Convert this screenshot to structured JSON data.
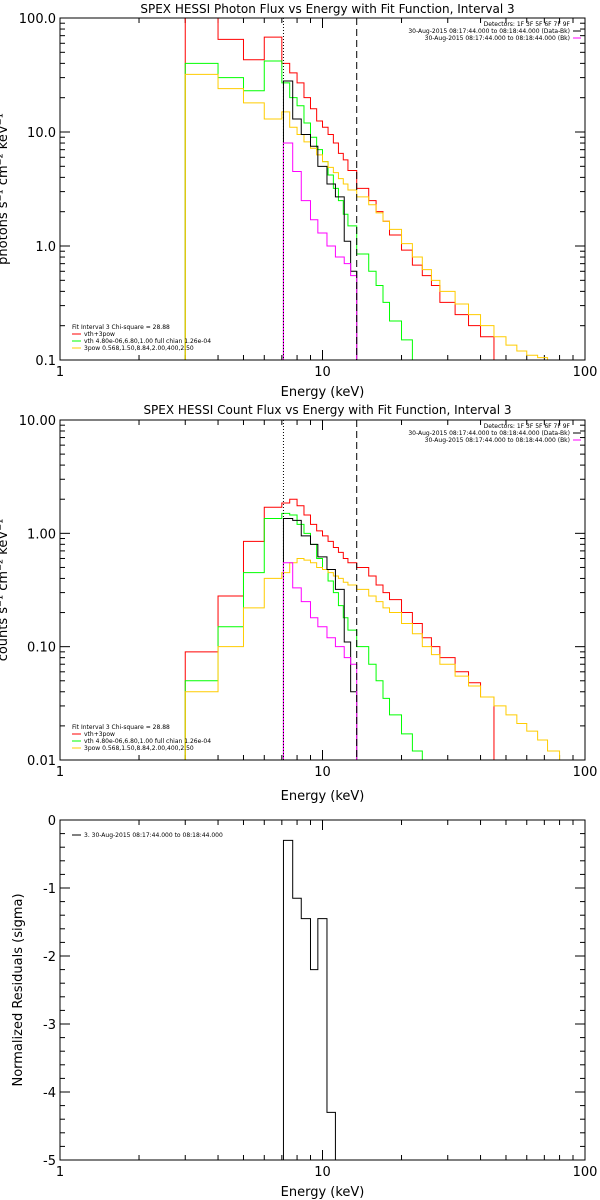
{
  "chart_data": [
    {
      "type": "line",
      "title": "SPEX HESSI Photon Flux vs Energy with Fit Function, Interval 3",
      "xlabel": "Energy (keV)",
      "ylabel": "photons s⁻¹ cm⁻² keV⁻¹",
      "x_scale": "log",
      "y_scale": "log",
      "xlim": [
        1,
        100
      ],
      "ylim": [
        0.1,
        100
      ],
      "xticks": [
        1,
        10,
        100
      ],
      "xtick_labels": [
        "1",
        "10",
        "100"
      ],
      "yticks": [
        0.1,
        1,
        10,
        100
      ],
      "ytick_labels": [
        "0.1",
        "1.0",
        "10.0",
        "100.0"
      ],
      "grid": false,
      "legend_right": [
        {
          "text": "Detectors: 1F 3F 5F 6F 7F 9F",
          "color": ""
        },
        {
          "text": "30-Aug-2015 08:17:44.000 to 08:18:44.000 (Data-Bk)",
          "color": "#000000"
        },
        {
          "text": "30-Aug-2015 08:17:44.000 to 08:18:44.000 (Bk)",
          "color": "#ff00ff"
        }
      ],
      "legend_left": [
        {
          "text": "Fit Interval 3   Chi-square = 28.88",
          "color": ""
        },
        {
          "text": "vth+3pow",
          "color": "#ff0000"
        },
        {
          "text": "vth 4.80e-06,6.80,1.00   full chian 1.26e-04",
          "color": "#00ff00"
        },
        {
          "text": "3pow 0.568,1.50,8.84,2.00,400,2.50",
          "color": "#ffcc00"
        }
      ],
      "vlines": [
        {
          "x": 7.1,
          "style": "dotted"
        },
        {
          "x": 13.5,
          "style": "dashed"
        }
      ],
      "series": [
        {
          "name": "vth+3pow",
          "color": "#ff0000",
          "edges": [
            3,
            4,
            5,
            6,
            7,
            7.5,
            8,
            8.5,
            9,
            9.5,
            10,
            10.5,
            11,
            11.5,
            12,
            12.5,
            13.5,
            15,
            16,
            17,
            18,
            20,
            22,
            24,
            26,
            28,
            32,
            36,
            40,
            45
          ],
          "values": [
            100,
            65,
            43,
            68,
            40,
            33,
            27,
            20,
            16,
            12.5,
            11,
            9.5,
            8,
            6.5,
            5.7,
            4.6,
            3.2,
            2.5,
            2,
            1.65,
            1.25,
            0.92,
            0.68,
            0.55,
            0.45,
            0.32,
            0.25,
            0.2,
            0.16
          ]
        },
        {
          "name": "vth",
          "color": "#00ff00",
          "edges": [
            3,
            4,
            5,
            6,
            7,
            7.5,
            8,
            8.5,
            9,
            9.5,
            10,
            10.5,
            11,
            11.5,
            12,
            12.5,
            13.5,
            15,
            16,
            17,
            18,
            20,
            22,
            24,
            26,
            28
          ],
          "values": [
            40,
            30,
            23,
            42,
            27,
            20,
            17,
            12,
            9,
            7,
            5.5,
            4.2,
            3.2,
            2.5,
            1.9,
            1.5,
            0.85,
            0.6,
            0.45,
            0.32,
            0.22,
            0.15,
            0.1,
            0.1,
            0.1
          ]
        },
        {
          "name": "3pow",
          "color": "#ffcc00",
          "edges": [
            3,
            4,
            5,
            6,
            7,
            7.5,
            8,
            8.5,
            9,
            9.5,
            10,
            10.5,
            11,
            11.5,
            12,
            12.5,
            13.5,
            15,
            16,
            17,
            18,
            20,
            22,
            24,
            26,
            28,
            32,
            36,
            40,
            45,
            50,
            55,
            60,
            66,
            72,
            80
          ],
          "values": [
            32,
            24,
            18,
            13,
            15,
            11,
            9.5,
            8.2,
            7.2,
            6.3,
            5.5,
            4.9,
            4.4,
            3.9,
            3.5,
            3.1,
            2.7,
            2.3,
            1.95,
            1.65,
            1.4,
            1.05,
            0.8,
            0.62,
            0.5,
            0.4,
            0.31,
            0.25,
            0.2,
            0.16,
            0.135,
            0.12,
            0.11,
            0.105,
            0.1
          ]
        },
        {
          "name": "Data-Bk",
          "color": "#000000",
          "edges": [
            7.1,
            7.7,
            8.3,
            9,
            9.6,
            10.4,
            11.2,
            12.1,
            12.8,
            13.5
          ],
          "values": [
            28,
            13,
            9.5,
            7.5,
            5,
            3.5,
            2.7,
            1.1,
            0.6
          ]
        },
        {
          "name": "Bk",
          "color": "#ff00ff",
          "edges": [
            7.1,
            7.7,
            8.3,
            9,
            9.6,
            10.4,
            11.2,
            12.1,
            12.8,
            13.5
          ],
          "values": [
            8,
            4.5,
            2.5,
            1.7,
            1.3,
            1,
            0.8,
            0.7,
            0.55
          ]
        }
      ]
    },
    {
      "type": "line",
      "title": "SPEX HESSI Count Flux vs Energy with Fit Function, Interval 3",
      "xlabel": "Energy (keV)",
      "ylabel": "counts s⁻¹ cm⁻² keV⁻¹",
      "x_scale": "log",
      "y_scale": "log",
      "xlim": [
        1,
        100
      ],
      "ylim": [
        0.01,
        10
      ],
      "xticks": [
        1,
        10,
        100
      ],
      "xtick_labels": [
        "1",
        "10",
        "100"
      ],
      "yticks": [
        0.01,
        0.1,
        1,
        10
      ],
      "ytick_labels": [
        "0.01",
        "0.10",
        "1.00",
        "10.00"
      ],
      "grid": false,
      "legend_right": [
        {
          "text": "Detectors: 1F 3F 5F 6F 7F 9F",
          "color": ""
        },
        {
          "text": "30-Aug-2015 08:17:44.000 to 08:18:44.000 (Data-Bk)",
          "color": "#000000"
        },
        {
          "text": "30-Aug-2015 08:17:44.000 to 08:18:44.000 (Bk)",
          "color": "#ff00ff"
        }
      ],
      "legend_left": [
        {
          "text": "Fit Interval 3   Chi-square = 28.88",
          "color": ""
        },
        {
          "text": "vth+3pow",
          "color": "#ff0000"
        },
        {
          "text": "vth 4.80e-06,6.80,1.00   full chian 1.26e-04",
          "color": "#00ff00"
        },
        {
          "text": "3pow 0.568,1.50,8.84,2.00,400,2.50",
          "color": "#ffcc00"
        }
      ],
      "vlines": [
        {
          "x": 7.1,
          "style": "dotted"
        },
        {
          "x": 13.5,
          "style": "dashed"
        }
      ],
      "series": [
        {
          "name": "vth+3pow",
          "color": "#ff0000",
          "edges": [
            3,
            4,
            5,
            6,
            7,
            7.5,
            8,
            8.5,
            9,
            9.5,
            10,
            10.5,
            11,
            11.5,
            12,
            12.5,
            13.5,
            15,
            16,
            17,
            18,
            20,
            22,
            24,
            26,
            28,
            32,
            36,
            40,
            45
          ],
          "values": [
            0.09,
            0.28,
            0.85,
            1.7,
            1.85,
            2,
            1.75,
            1.45,
            1.2,
            1.05,
            0.95,
            0.85,
            0.75,
            0.68,
            0.6,
            0.55,
            0.5,
            0.42,
            0.35,
            0.3,
            0.26,
            0.2,
            0.16,
            0.12,
            0.1,
            0.08,
            0.06,
            0.048,
            0.036
          ]
        },
        {
          "name": "vth",
          "color": "#00ff00",
          "edges": [
            3,
            4,
            5,
            6,
            7,
            7.5,
            8,
            8.5,
            9,
            9.5,
            10,
            10.5,
            11,
            11.5,
            12,
            12.5,
            13.5,
            15,
            16,
            17,
            18,
            20,
            22,
            24,
            26,
            28
          ],
          "values": [
            0.05,
            0.15,
            0.45,
            1.35,
            1.5,
            1.45,
            1.2,
            1,
            0.8,
            0.6,
            0.48,
            0.38,
            0.3,
            0.23,
            0.18,
            0.14,
            0.1,
            0.07,
            0.05,
            0.035,
            0.025,
            0.017,
            0.012,
            0.01,
            0.01
          ]
        },
        {
          "name": "3pow",
          "color": "#ffcc00",
          "edges": [
            3,
            4,
            5,
            6,
            7,
            7.5,
            8,
            8.5,
            9,
            9.5,
            10,
            10.5,
            11,
            11.5,
            12,
            12.5,
            13.5,
            15,
            16,
            17,
            18,
            20,
            22,
            24,
            26,
            28,
            32,
            36,
            40,
            45,
            50,
            55,
            60,
            66,
            72,
            80,
            90
          ],
          "values": [
            0.04,
            0.1,
            0.22,
            0.4,
            0.45,
            0.55,
            0.6,
            0.58,
            0.55,
            0.5,
            0.48,
            0.45,
            0.42,
            0.4,
            0.37,
            0.35,
            0.32,
            0.28,
            0.25,
            0.22,
            0.2,
            0.16,
            0.13,
            0.1,
            0.085,
            0.07,
            0.055,
            0.045,
            0.036,
            0.03,
            0.025,
            0.021,
            0.018,
            0.015,
            0.012,
            0.01
          ]
        },
        {
          "name": "Data-Bk",
          "color": "#000000",
          "edges": [
            7.1,
            7.7,
            8.3,
            9,
            9.6,
            10.4,
            11.2,
            12.1,
            12.8,
            13.5
          ],
          "values": [
            1.35,
            1.3,
            0.95,
            0.8,
            0.62,
            0.48,
            0.32,
            0.11,
            0.04
          ]
        },
        {
          "name": "Bk",
          "color": "#ff00ff",
          "edges": [
            7.1,
            7.7,
            8.3,
            9,
            9.6,
            10.4,
            11.2,
            12.1,
            12.8,
            13.5
          ],
          "values": [
            0.55,
            0.33,
            0.25,
            0.18,
            0.15,
            0.12,
            0.1,
            0.08,
            0.07
          ]
        }
      ]
    },
    {
      "type": "line",
      "title": "",
      "xlabel": "Energy (keV)",
      "ylabel": "Normalized Residuals (sigma)",
      "x_scale": "log",
      "y_scale": "linear",
      "xlim": [
        1,
        100
      ],
      "ylim": [
        -5,
        0
      ],
      "xticks": [
        1,
        10,
        100
      ],
      "xtick_labels": [
        "1",
        "10",
        "100"
      ],
      "yticks": [
        -5,
        -4,
        -3,
        -2,
        -1,
        0
      ],
      "ytick_labels": [
        "-5",
        "-4",
        "-3",
        "-2",
        "-1",
        "0"
      ],
      "grid": false,
      "legend_right": [],
      "legend_left": [
        {
          "text": "3. 30-Aug-2015 08:17:44.000 to 08:18:44.000",
          "color": "#000000"
        }
      ],
      "vlines": [],
      "series": [
        {
          "name": "3. 30-Aug-2015 08:17:44.000 to 08:18:44.000",
          "color": "#000000",
          "edges": [
            7.1,
            7.7,
            8.3,
            9,
            9.6,
            10.4,
            11.2,
            12.1,
            12.8,
            13.5
          ],
          "values": [
            -0.3,
            -1.15,
            -1.45,
            -2.2,
            -1.45,
            -4.3,
            -5,
            -5,
            -5
          ],
          "vertical_ends": true
        }
      ]
    }
  ]
}
